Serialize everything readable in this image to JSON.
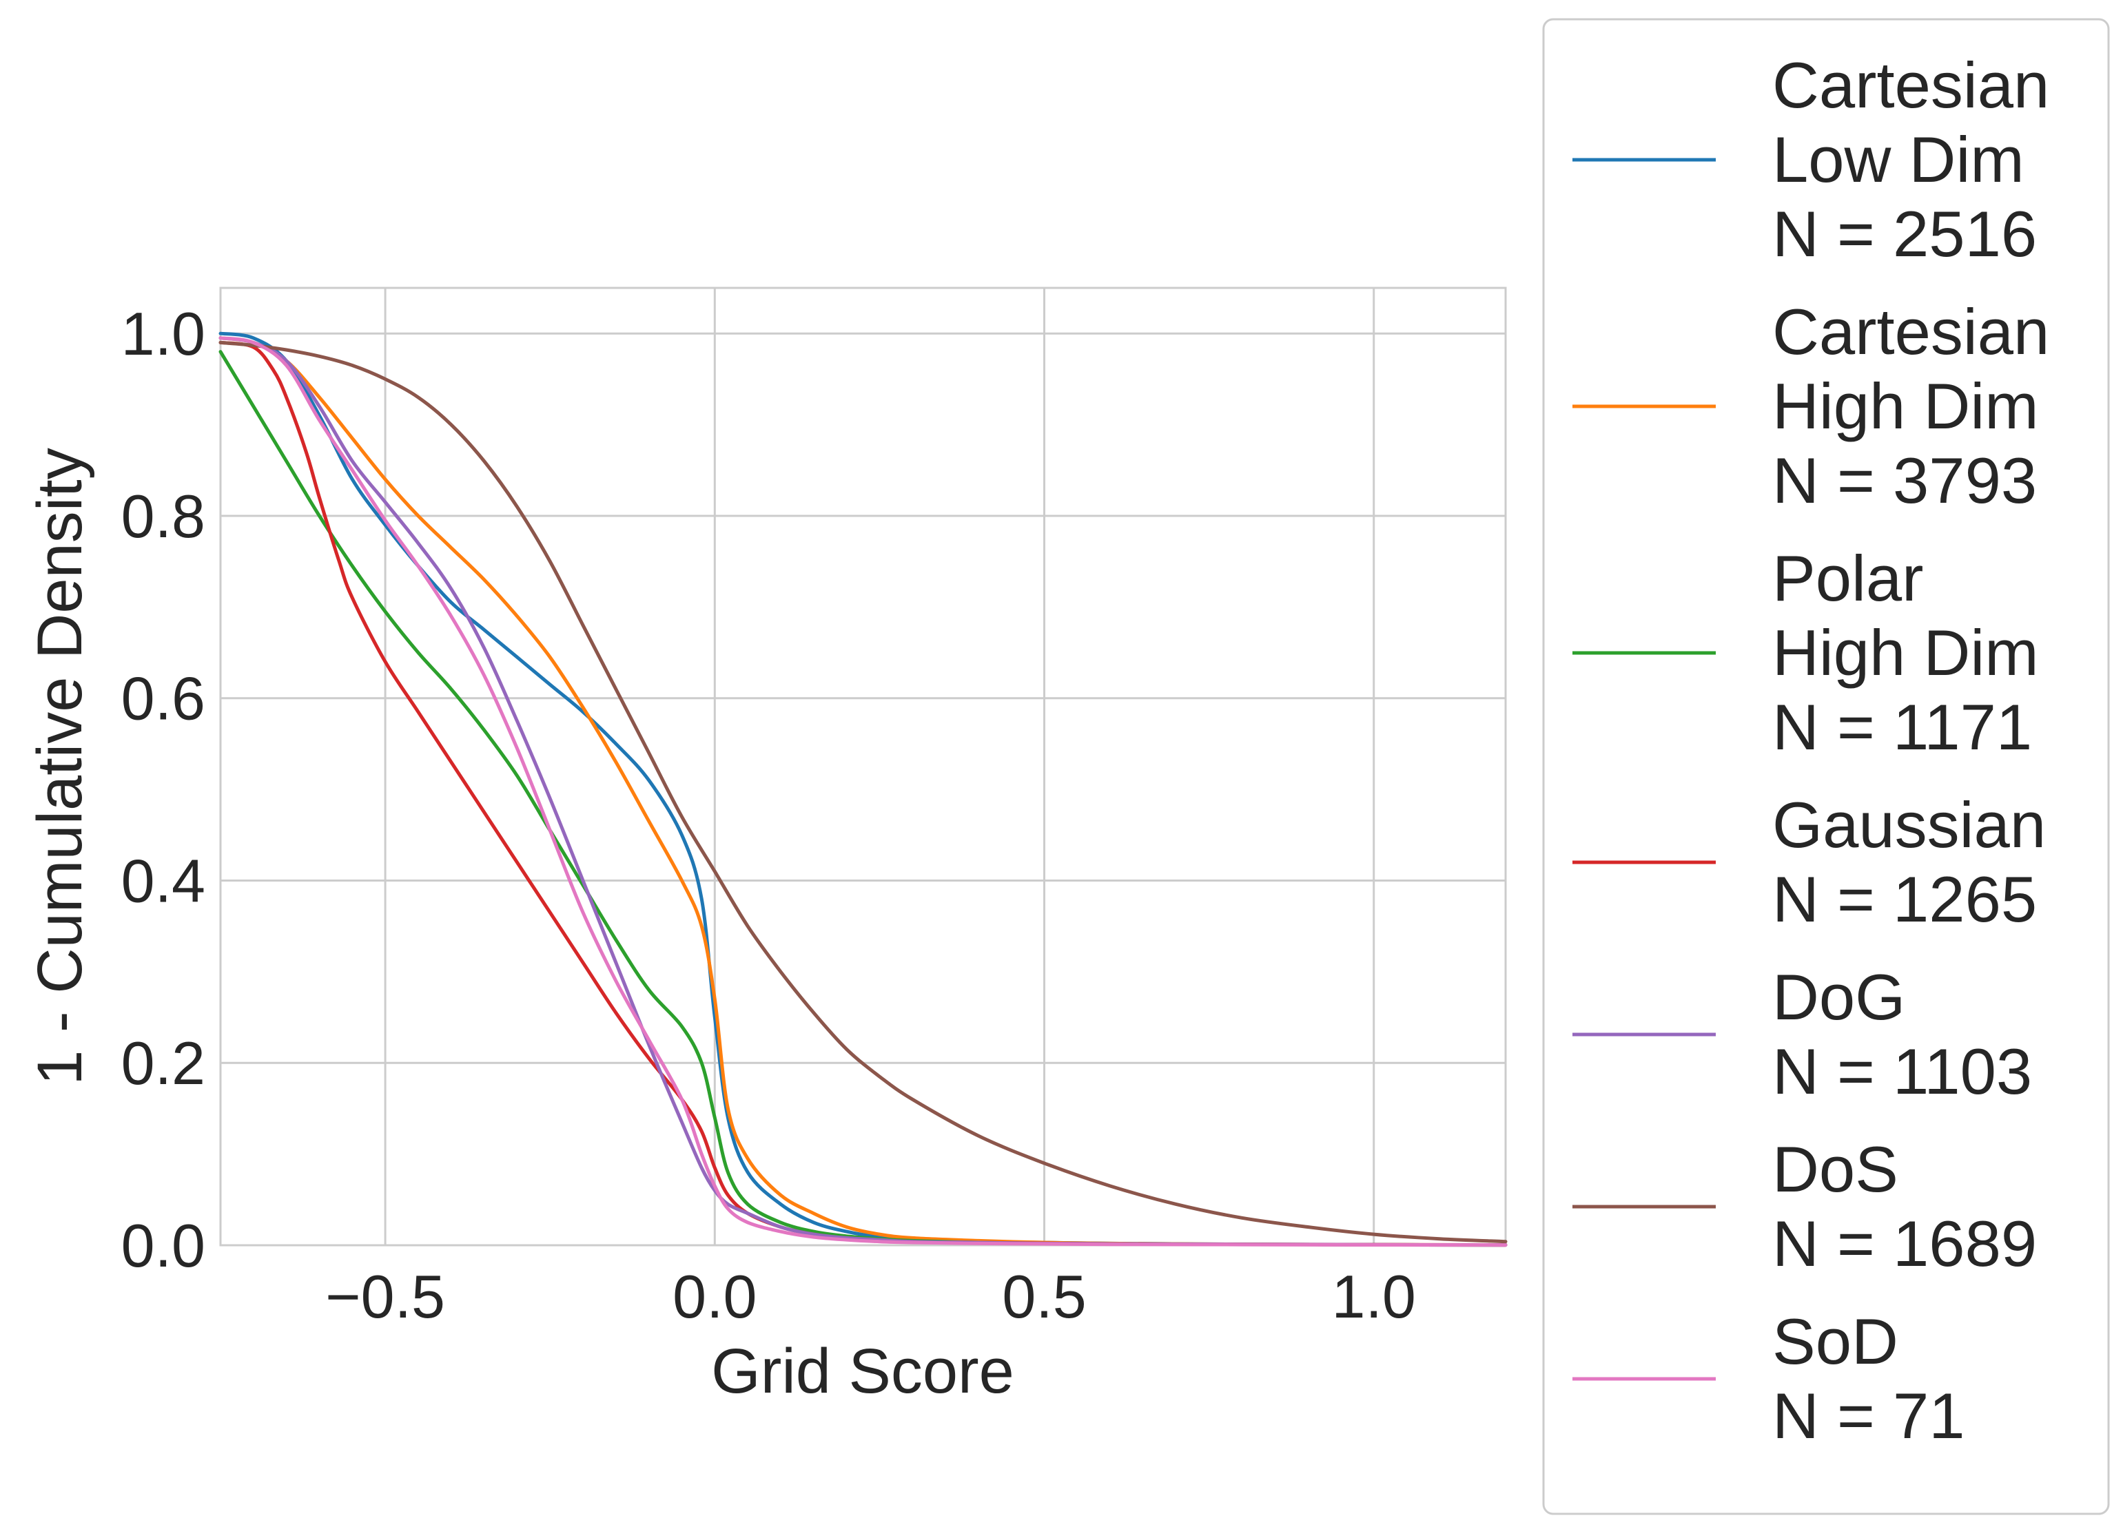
{
  "chart_data": {
    "type": "line",
    "title": "",
    "xlabel": "Grid Score",
    "ylabel": "1 - Cumulative Density",
    "xlim": [
      -0.75,
      1.2
    ],
    "ylim": [
      0.0,
      1.05
    ],
    "xticks": [
      -0.5,
      0.0,
      0.5,
      1.0
    ],
    "xtick_labels": [
      "−0.5",
      "0.0",
      "0.5",
      "1.0"
    ],
    "yticks": [
      0.0,
      0.2,
      0.4,
      0.6,
      0.8,
      1.0
    ],
    "ytick_labels": [
      "0.0",
      "0.2",
      "0.4",
      "0.6",
      "0.8",
      "1.0"
    ],
    "grid": true,
    "legend_position": "outside-right",
    "series": [
      {
        "name": "Cartesian Low Dim N = 2516",
        "legend_lines": [
          "Cartesian",
          "Low Dim",
          "N = 2516"
        ],
        "color": "#1f77b4",
        "x": [
          -0.75,
          -0.7,
          -0.65,
          -0.6,
          -0.55,
          -0.5,
          -0.45,
          -0.4,
          -0.35,
          -0.3,
          -0.25,
          -0.2,
          -0.15,
          -0.1,
          -0.05,
          -0.02,
          0.0,
          0.02,
          0.05,
          0.1,
          0.15,
          0.2,
          0.25,
          0.3,
          0.4,
          0.5,
          0.6,
          0.8,
          1.0,
          1.2
        ],
        "y": [
          1.0,
          0.995,
          0.97,
          0.91,
          0.84,
          0.79,
          0.745,
          0.705,
          0.675,
          0.645,
          0.615,
          0.585,
          0.55,
          0.51,
          0.45,
          0.38,
          0.25,
          0.14,
          0.08,
          0.045,
          0.025,
          0.015,
          0.009,
          0.006,
          0.004,
          0.003,
          0.002,
          0.001,
          0.0005,
          0.0003
        ]
      },
      {
        "name": "Cartesian High Dim N = 3793",
        "legend_lines": [
          "Cartesian",
          "High Dim",
          "N = 3793"
        ],
        "color": "#ff7f0e",
        "x": [
          -0.75,
          -0.7,
          -0.65,
          -0.6,
          -0.55,
          -0.5,
          -0.45,
          -0.4,
          -0.35,
          -0.3,
          -0.25,
          -0.2,
          -0.15,
          -0.1,
          -0.05,
          -0.02,
          0.0,
          0.02,
          0.05,
          0.1,
          0.15,
          0.2,
          0.25,
          0.3,
          0.4,
          0.5,
          0.6,
          0.8,
          1.0,
          1.2
        ],
        "y": [
          0.995,
          0.99,
          0.97,
          0.93,
          0.885,
          0.84,
          0.8,
          0.765,
          0.73,
          0.69,
          0.645,
          0.59,
          0.53,
          0.465,
          0.4,
          0.35,
          0.27,
          0.15,
          0.095,
          0.055,
          0.035,
          0.02,
          0.012,
          0.008,
          0.005,
          0.003,
          0.002,
          0.001,
          0.0005,
          0.0003
        ]
      },
      {
        "name": "Polar High Dim N = 1171",
        "legend_lines": [
          "Polar",
          "High Dim",
          "N = 1171"
        ],
        "color": "#2ca02c",
        "x": [
          -0.75,
          -0.7,
          -0.65,
          -0.6,
          -0.55,
          -0.5,
          -0.45,
          -0.4,
          -0.35,
          -0.3,
          -0.25,
          -0.2,
          -0.15,
          -0.1,
          -0.05,
          -0.02,
          0.0,
          0.02,
          0.05,
          0.1,
          0.15,
          0.2,
          0.25,
          0.3,
          0.4,
          0.5,
          0.6,
          0.8,
          1.0,
          1.2
        ],
        "y": [
          0.98,
          0.92,
          0.86,
          0.8,
          0.745,
          0.695,
          0.65,
          0.61,
          0.565,
          0.515,
          0.455,
          0.395,
          0.335,
          0.28,
          0.24,
          0.2,
          0.14,
          0.08,
          0.045,
          0.025,
          0.015,
          0.01,
          0.007,
          0.005,
          0.003,
          0.002,
          0.0015,
          0.001,
          0.0005,
          0.0003
        ]
      },
      {
        "name": "Gaussian N = 1265",
        "legend_lines": [
          "Gaussian",
          "N = 1265"
        ],
        "color": "#d62728",
        "x": [
          -0.75,
          -0.7,
          -0.67,
          -0.65,
          -0.62,
          -0.6,
          -0.57,
          -0.55,
          -0.5,
          -0.45,
          -0.4,
          -0.35,
          -0.3,
          -0.25,
          -0.2,
          -0.15,
          -0.1,
          -0.05,
          -0.02,
          0.0,
          0.02,
          0.05,
          0.1,
          0.15,
          0.2,
          0.3,
          0.4,
          0.6,
          0.8,
          1.2
        ],
        "y": [
          0.99,
          0.985,
          0.96,
          0.93,
          0.87,
          0.82,
          0.75,
          0.71,
          0.64,
          0.585,
          0.53,
          0.475,
          0.42,
          0.365,
          0.31,
          0.255,
          0.205,
          0.16,
          0.125,
          0.085,
          0.055,
          0.035,
          0.02,
          0.012,
          0.008,
          0.004,
          0.003,
          0.0015,
          0.001,
          0.0003
        ]
      },
      {
        "name": "DoG N = 1103",
        "legend_lines": [
          "DoG",
          "N = 1103"
        ],
        "color": "#9467bd",
        "x": [
          -0.75,
          -0.7,
          -0.65,
          -0.6,
          -0.55,
          -0.5,
          -0.45,
          -0.4,
          -0.35,
          -0.3,
          -0.25,
          -0.2,
          -0.15,
          -0.1,
          -0.05,
          -0.02,
          0.0,
          0.02,
          0.05,
          0.1,
          0.15,
          0.2,
          0.25,
          0.3,
          0.4,
          0.5,
          0.6,
          0.8,
          1.0,
          1.2
        ],
        "y": [
          0.995,
          0.99,
          0.97,
          0.92,
          0.86,
          0.815,
          0.77,
          0.72,
          0.655,
          0.575,
          0.49,
          0.4,
          0.31,
          0.22,
          0.135,
          0.085,
          0.06,
          0.045,
          0.035,
          0.02,
          0.012,
          0.008,
          0.006,
          0.004,
          0.003,
          0.002,
          0.0015,
          0.001,
          0.0005,
          0.0003
        ]
      },
      {
        "name": "DoS N = 1689",
        "legend_lines": [
          "DoS",
          "N = 1689"
        ],
        "color": "#8c564b",
        "x": [
          -0.75,
          -0.7,
          -0.65,
          -0.6,
          -0.55,
          -0.5,
          -0.45,
          -0.4,
          -0.35,
          -0.3,
          -0.25,
          -0.2,
          -0.15,
          -0.1,
          -0.05,
          0.0,
          0.05,
          0.1,
          0.15,
          0.2,
          0.25,
          0.3,
          0.4,
          0.5,
          0.6,
          0.7,
          0.8,
          0.9,
          1.0,
          1.1,
          1.2
        ],
        "y": [
          0.99,
          0.987,
          0.982,
          0.975,
          0.965,
          0.95,
          0.93,
          0.9,
          0.86,
          0.81,
          0.75,
          0.68,
          0.61,
          0.54,
          0.47,
          0.41,
          0.35,
          0.3,
          0.255,
          0.215,
          0.185,
          0.16,
          0.12,
          0.09,
          0.065,
          0.045,
          0.03,
          0.02,
          0.012,
          0.007,
          0.004
        ]
      },
      {
        "name": "SoD N = 71",
        "legend_lines": [
          "SoD",
          "N = 71"
        ],
        "color": "#e377c2",
        "x": [
          -0.75,
          -0.7,
          -0.65,
          -0.6,
          -0.55,
          -0.5,
          -0.45,
          -0.4,
          -0.35,
          -0.3,
          -0.25,
          -0.2,
          -0.15,
          -0.1,
          -0.05,
          -0.02,
          0.0,
          0.02,
          0.05,
          0.1,
          0.15,
          0.2,
          0.25,
          0.3,
          0.4,
          0.5,
          0.6,
          0.8,
          1.0,
          1.2
        ],
        "y": [
          0.995,
          0.99,
          0.965,
          0.905,
          0.85,
          0.795,
          0.745,
          0.69,
          0.625,
          0.545,
          0.455,
          0.365,
          0.29,
          0.225,
          0.16,
          0.1,
          0.065,
          0.04,
          0.025,
          0.015,
          0.009,
          0.006,
          0.004,
          0.003,
          0.002,
          0.0015,
          0.001,
          0.0007,
          0.0004,
          0.0002
        ]
      }
    ]
  }
}
